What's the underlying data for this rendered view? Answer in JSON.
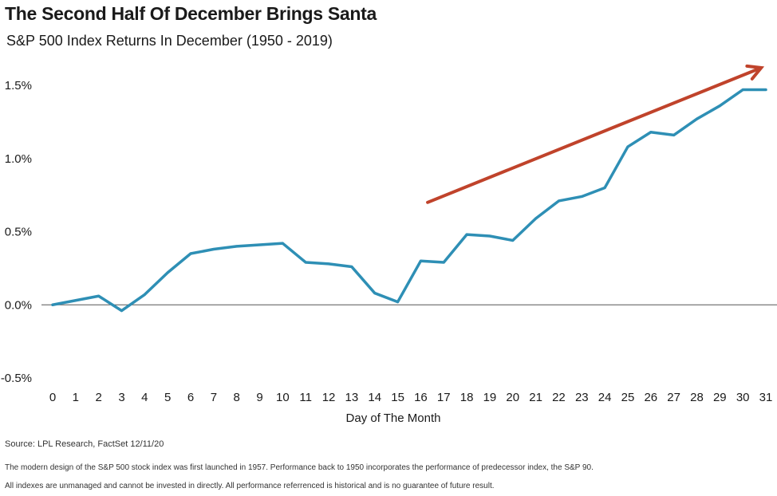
{
  "header": {
    "title": "The Second Half Of December Brings Santa",
    "subtitle": "S&P 500 Index Returns In December (1950 - 2019)"
  },
  "footer": {
    "source": "Source: LPL Research, FactSet 12/11/20",
    "note1": "The modern design of the S&P 500 stock index was first launched in 1957. Performance back to 1950 incorporates the performance of predecessor index, the S&P 90.",
    "note2": "All indexes are unmanaged and cannot be invested in directly. All performance referrenced is historical and is no guarantee of future result."
  },
  "chart_data": {
    "type": "line",
    "title": "The Second Half Of December Brings Santa",
    "subtitle": "S&P 500 Index Returns In December (1950 - 2019)",
    "xlabel": "Day of The Month",
    "ylabel": "",
    "x": [
      0,
      1,
      2,
      3,
      4,
      5,
      6,
      7,
      8,
      9,
      10,
      11,
      12,
      13,
      14,
      15,
      16,
      17,
      18,
      19,
      20,
      21,
      22,
      23,
      24,
      25,
      26,
      27,
      28,
      29,
      30,
      31
    ],
    "series": [
      {
        "name": "S&P 500 Index Returns",
        "color": "#2e8fb5",
        "values": [
          0.0,
          0.03,
          0.06,
          -0.04,
          0.07,
          0.22,
          0.35,
          0.38,
          0.4,
          0.41,
          0.42,
          0.29,
          0.28,
          0.26,
          0.08,
          0.02,
          0.3,
          0.29,
          0.48,
          0.47,
          0.44,
          0.59,
          0.71,
          0.74,
          0.8,
          1.08,
          1.18,
          1.16,
          1.27,
          1.36,
          1.47,
          1.47
        ]
      }
    ],
    "xlim": [
      0,
      31
    ],
    "ylim": [
      -0.5,
      1.5
    ],
    "yticks": [
      -0.5,
      0.0,
      0.5,
      1.0,
      1.5
    ],
    "ytick_labels": [
      "-0.5%",
      "0.0%",
      "0.5%",
      "1.0%",
      "1.5%"
    ],
    "xtick_labels": [
      "0",
      "1",
      "2",
      "3",
      "4",
      "5",
      "6",
      "7",
      "8",
      "9",
      "10",
      "11",
      "12",
      "13",
      "14",
      "15",
      "16",
      "17",
      "18",
      "19",
      "20",
      "21",
      "22",
      "23",
      "24",
      "25",
      "26",
      "27",
      "28",
      "29",
      "30",
      "31"
    ],
    "grid": false,
    "annotations": [
      {
        "type": "arrow",
        "color": "#c0432b",
        "from": {
          "x": 16.3,
          "y": 0.7
        },
        "to": {
          "x": 30.8,
          "y": 1.62
        }
      }
    ]
  }
}
